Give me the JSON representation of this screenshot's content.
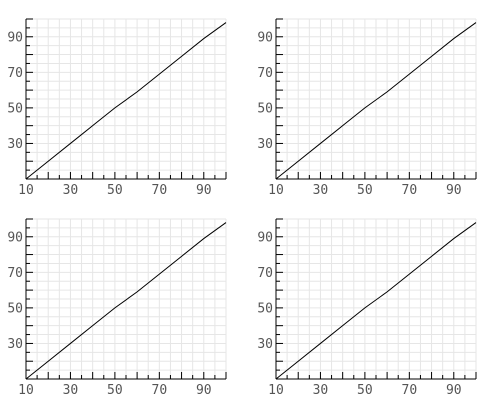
{
  "style": {
    "line_color": "#000000",
    "grid_color": "#e6e6e6",
    "axis_color": "#000000",
    "tick_text_color": "#555555"
  },
  "chart_data": [
    {
      "type": "line",
      "title": "",
      "xlabel": "",
      "ylabel": "",
      "xlim": [
        10,
        100
      ],
      "ylim": [
        10,
        100
      ],
      "grid": true,
      "legend": "none",
      "x_ticks": [
        10,
        30,
        50,
        70,
        90
      ],
      "x_tick_labels": [
        "10",
        "30",
        "50",
        "70",
        "90"
      ],
      "y_ticks": [
        30,
        50,
        70,
        90
      ],
      "y_tick_labels": [
        "30",
        "50",
        "70",
        "90"
      ],
      "series": [
        {
          "x": [
            10,
            20,
            30,
            40,
            50,
            60,
            70,
            80,
            90,
            100
          ],
          "y": [
            10,
            20,
            30,
            40,
            50,
            59,
            69,
            79,
            89,
            98
          ]
        }
      ]
    },
    {
      "type": "line",
      "title": "",
      "xlabel": "",
      "ylabel": "",
      "xlim": [
        10,
        100
      ],
      "ylim": [
        10,
        100
      ],
      "grid": true,
      "legend": "none",
      "x_ticks": [
        10,
        30,
        50,
        70,
        90
      ],
      "x_tick_labels": [
        "10",
        "30",
        "50",
        "70",
        "90"
      ],
      "y_ticks": [
        30,
        50,
        70,
        90
      ],
      "y_tick_labels": [
        "30",
        "50",
        "70",
        "90"
      ],
      "series": [
        {
          "x": [
            10,
            20,
            30,
            40,
            50,
            60,
            70,
            80,
            90,
            100
          ],
          "y": [
            10,
            20,
            30,
            40,
            50,
            59,
            69,
            79,
            89,
            98
          ]
        }
      ]
    },
    {
      "type": "line",
      "title": "",
      "xlabel": "",
      "ylabel": "",
      "xlim": [
        10,
        100
      ],
      "ylim": [
        10,
        100
      ],
      "grid": true,
      "legend": "none",
      "x_ticks": [
        10,
        30,
        50,
        70,
        90
      ],
      "x_tick_labels": [
        "10",
        "30",
        "50",
        "70",
        "90"
      ],
      "y_ticks": [
        30,
        50,
        70,
        90
      ],
      "y_tick_labels": [
        "30",
        "50",
        "70",
        "90"
      ],
      "series": [
        {
          "x": [
            10,
            20,
            30,
            40,
            50,
            60,
            70,
            80,
            90,
            100
          ],
          "y": [
            10,
            20,
            30,
            40,
            50,
            59,
            69,
            79,
            89,
            98
          ]
        }
      ]
    },
    {
      "type": "line",
      "title": "",
      "xlabel": "",
      "ylabel": "",
      "xlim": [
        10,
        100
      ],
      "ylim": [
        10,
        100
      ],
      "grid": true,
      "legend": "none",
      "x_ticks": [
        10,
        30,
        50,
        70,
        90
      ],
      "x_tick_labels": [
        "10",
        "30",
        "50",
        "70",
        "90"
      ],
      "y_ticks": [
        30,
        50,
        70,
        90
      ],
      "y_tick_labels": [
        "30",
        "50",
        "70",
        "90"
      ],
      "series": [
        {
          "x": [
            10,
            20,
            30,
            40,
            50,
            60,
            70,
            80,
            90,
            100
          ],
          "y": [
            10,
            20,
            30,
            40,
            50,
            59,
            69,
            79,
            89,
            98
          ]
        }
      ]
    }
  ]
}
